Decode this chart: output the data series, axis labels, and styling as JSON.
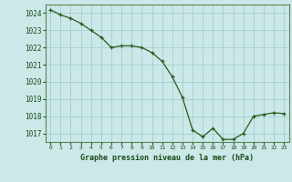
{
  "x": [
    0,
    1,
    2,
    3,
    4,
    5,
    6,
    7,
    8,
    9,
    10,
    11,
    12,
    13,
    14,
    15,
    16,
    17,
    18,
    19,
    20,
    21,
    22,
    23
  ],
  "y": [
    1024.2,
    1023.9,
    1023.7,
    1023.4,
    1023.0,
    1022.6,
    1022.0,
    1022.1,
    1022.1,
    1022.0,
    1021.7,
    1021.2,
    1020.3,
    1019.1,
    1017.2,
    1016.8,
    1017.3,
    1016.65,
    1016.65,
    1017.0,
    1018.0,
    1018.1,
    1018.2,
    1018.15
  ],
  "ylim": [
    1016.5,
    1024.5
  ],
  "yticks": [
    1017,
    1018,
    1019,
    1020,
    1021,
    1022,
    1023,
    1024
  ],
  "xticks": [
    0,
    1,
    2,
    3,
    4,
    5,
    6,
    7,
    8,
    9,
    10,
    11,
    12,
    13,
    14,
    15,
    16,
    17,
    18,
    19,
    20,
    21,
    22,
    23
  ],
  "line_color": "#2d5a1b",
  "marker_color": "#2d5a1b",
  "bg_color": "#cce8e8",
  "grid_color": "#99cccc",
  "xlabel": "Graphe pression niveau de la mer (hPa)",
  "xlabel_color": "#1a4a1a",
  "tick_color": "#1a4a1a",
  "axis_color": "#558855"
}
